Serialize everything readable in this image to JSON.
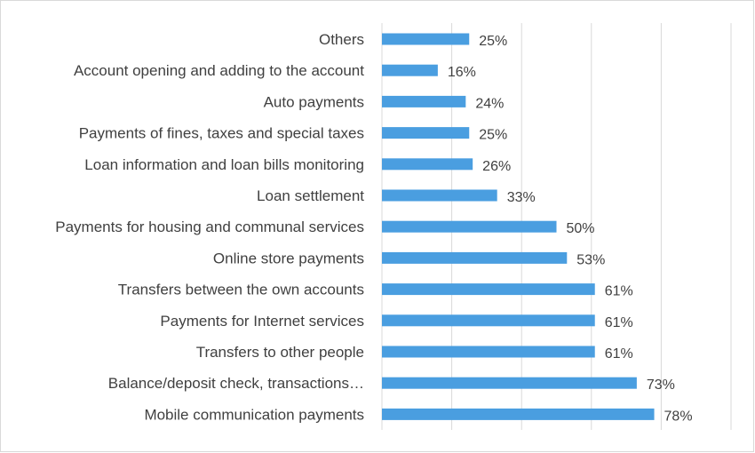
{
  "chart_data": {
    "type": "bar",
    "orientation": "horizontal",
    "title": "",
    "xlabel": "",
    "ylabel": "",
    "xlim": [
      0,
      100
    ],
    "grid": true,
    "legend": "none",
    "bar_color": "#4a9ee0",
    "categories": [
      "Others",
      "Account opening and adding to the account",
      "Auto payments",
      "Payments of fines, taxes and special taxes",
      "Loan information and loan bills monitoring",
      "Loan settlement",
      "Payments for housing and communal services",
      "Online store payments",
      "Transfers between the own accounts",
      "Payments for Internet services",
      "Transfers to other people",
      "Balance/deposit check, transactions…",
      "Mobile communication payments"
    ],
    "values": [
      25,
      16,
      24,
      25,
      26,
      33,
      50,
      53,
      61,
      61,
      61,
      73,
      78
    ],
    "data_labels": [
      "25%",
      "16%",
      "24%",
      "25%",
      "26%",
      "33%",
      "50%",
      "53%",
      "61%",
      "61%",
      "61%",
      "73%",
      "78%"
    ]
  }
}
